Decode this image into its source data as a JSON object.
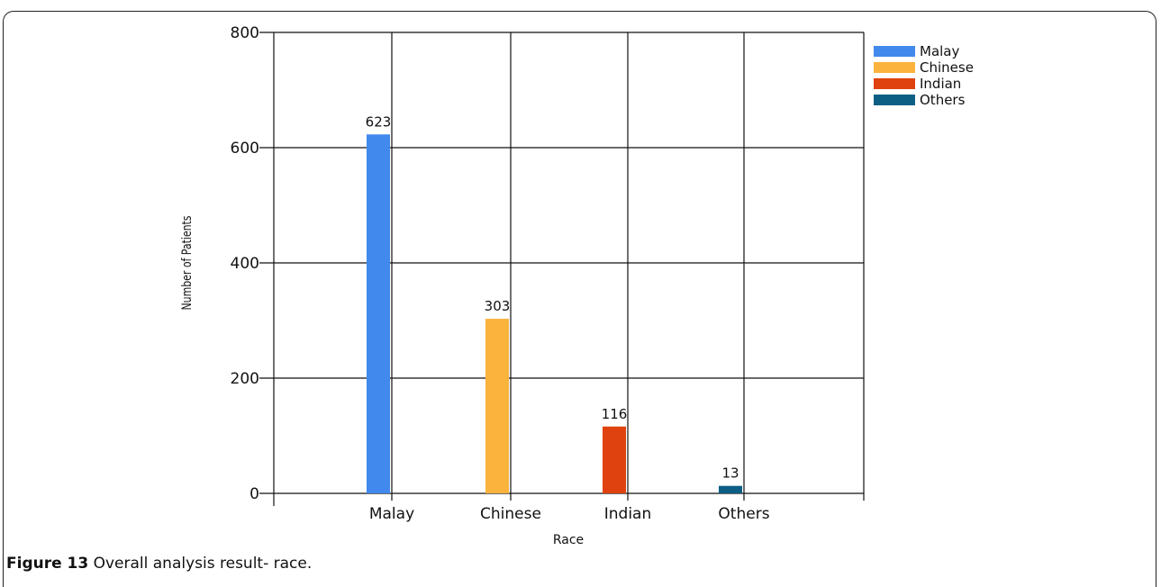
{
  "caption": {
    "label": "Figure 13",
    "text": " Overall analysis result- race."
  },
  "chart_data": {
    "type": "bar",
    "categories": [
      "Malay",
      "Chinese",
      "Indian",
      "Others"
    ],
    "series": [
      {
        "name": "Malay",
        "values": [
          623,
          null,
          null,
          null
        ],
        "color": "#4189ec"
      },
      {
        "name": "Chinese",
        "values": [
          null,
          303,
          null,
          null
        ],
        "color": "#fbb33d"
      },
      {
        "name": "Indian",
        "values": [
          null,
          null,
          116,
          null
        ],
        "color": "#df420e"
      },
      {
        "name": "Others",
        "values": [
          null,
          null,
          null,
          13
        ],
        "color": "#0d5e85"
      }
    ],
    "xlabel": "Race",
    "ylabel": "Number of Patients",
    "ylim": [
      0,
      800
    ],
    "yticks": [
      0,
      200,
      400,
      600,
      800
    ],
    "grid": true,
    "legend": "top-right"
  }
}
